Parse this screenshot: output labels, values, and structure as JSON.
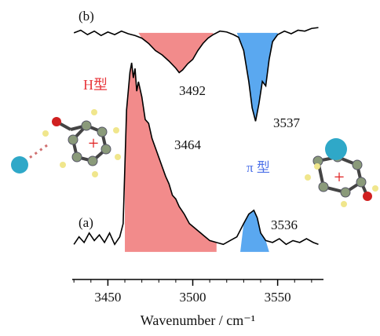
{
  "labels": {
    "panel_b": "(b)",
    "panel_a": "(a)",
    "h_type": "H型",
    "pi_type": "π 型"
  },
  "chart_data": [
    {
      "type": "line",
      "color": "#000000",
      "xlim": [
        3429,
        3577
      ],
      "ylim": [
        -1.05,
        0.15
      ],
      "x": [
        3430,
        3434,
        3438,
        3442,
        3446,
        3450,
        3454,
        3458,
        3462,
        3466,
        3470,
        3474,
        3478,
        3482,
        3486,
        3490,
        3492,
        3494,
        3497,
        3500,
        3503,
        3506,
        3509,
        3512,
        3516,
        3520,
        3524,
        3527,
        3530,
        3533,
        3535,
        3537,
        3539,
        3541,
        3543,
        3545,
        3547,
        3550,
        3554,
        3558,
        3562,
        3566,
        3570,
        3574
      ],
      "values": [
        0,
        0.03,
        -0.02,
        0.02,
        -0.03,
        0.01,
        -0.02,
        0.02,
        -0.01,
        -0.03,
        -0.06,
        -0.12,
        -0.2,
        -0.25,
        -0.32,
        -0.4,
        -0.45,
        -0.42,
        -0.35,
        -0.3,
        -0.2,
        -0.12,
        -0.06,
        -0.02,
        0.02,
        0.01,
        -0.02,
        -0.05,
        -0.2,
        -0.55,
        -0.85,
        -1.0,
        -0.8,
        -0.55,
        -0.6,
        -0.3,
        -0.1,
        -0.02,
        0.02,
        -0.01,
        0.03,
        0.02,
        0.05,
        0.06
      ],
      "fills": [
        {
          "from": 3468,
          "to": 3512,
          "color": "#f28b8b"
        },
        {
          "from": 3526,
          "to": 3550,
          "color": "#5aa8f0"
        }
      ],
      "annotations": [
        "3492",
        "3537"
      ]
    },
    {
      "type": "line",
      "color": "#000000",
      "xlim": [
        3429,
        3577
      ],
      "ylim": [
        -0.1,
        1.0
      ],
      "x": [
        3430,
        3433,
        3436,
        3439,
        3442,
        3445,
        3448,
        3451,
        3454,
        3457,
        3459,
        3460,
        3461,
        3462,
        3463,
        3464,
        3465,
        3466,
        3467,
        3468,
        3470,
        3472,
        3474,
        3476,
        3478,
        3480,
        3482,
        3484,
        3486,
        3488,
        3490,
        3492,
        3495,
        3498,
        3502,
        3506,
        3510,
        3514,
        3518,
        3522,
        3526,
        3530,
        3533,
        3536,
        3538,
        3540,
        3543,
        3547,
        3551,
        3555,
        3559,
        3563,
        3567,
        3571,
        3574
      ],
      "values": [
        0.04,
        0.08,
        0.05,
        0.1,
        0.06,
        0.09,
        0.05,
        0.1,
        0.04,
        0.08,
        0.15,
        0.45,
        0.75,
        0.85,
        0.95,
        1.0,
        0.92,
        0.97,
        0.85,
        0.9,
        0.82,
        0.7,
        0.68,
        0.6,
        0.55,
        0.5,
        0.45,
        0.4,
        0.36,
        0.3,
        0.28,
        0.24,
        0.2,
        0.15,
        0.12,
        0.09,
        0.06,
        0.05,
        0.04,
        0.06,
        0.08,
        0.15,
        0.2,
        0.22,
        0.18,
        0.1,
        0.06,
        0.05,
        0.07,
        0.04,
        0.06,
        0.05,
        0.07,
        0.05,
        0.04
      ],
      "fills": [
        {
          "from": 3460,
          "to": 3514,
          "color": "#f28b8b"
        },
        {
          "from": 3528,
          "to": 3545,
          "color": "#5aa8f0"
        }
      ],
      "annotations": [
        "3464",
        "3536"
      ],
      "xlabel": "Wavenumber / cm⁻¹",
      "xticks": [
        3450,
        3500,
        3550
      ],
      "xminorticks": [
        3430,
        3440,
        3460,
        3470,
        3480,
        3490,
        3510,
        3520,
        3530,
        3540,
        3560,
        3570
      ]
    }
  ]
}
